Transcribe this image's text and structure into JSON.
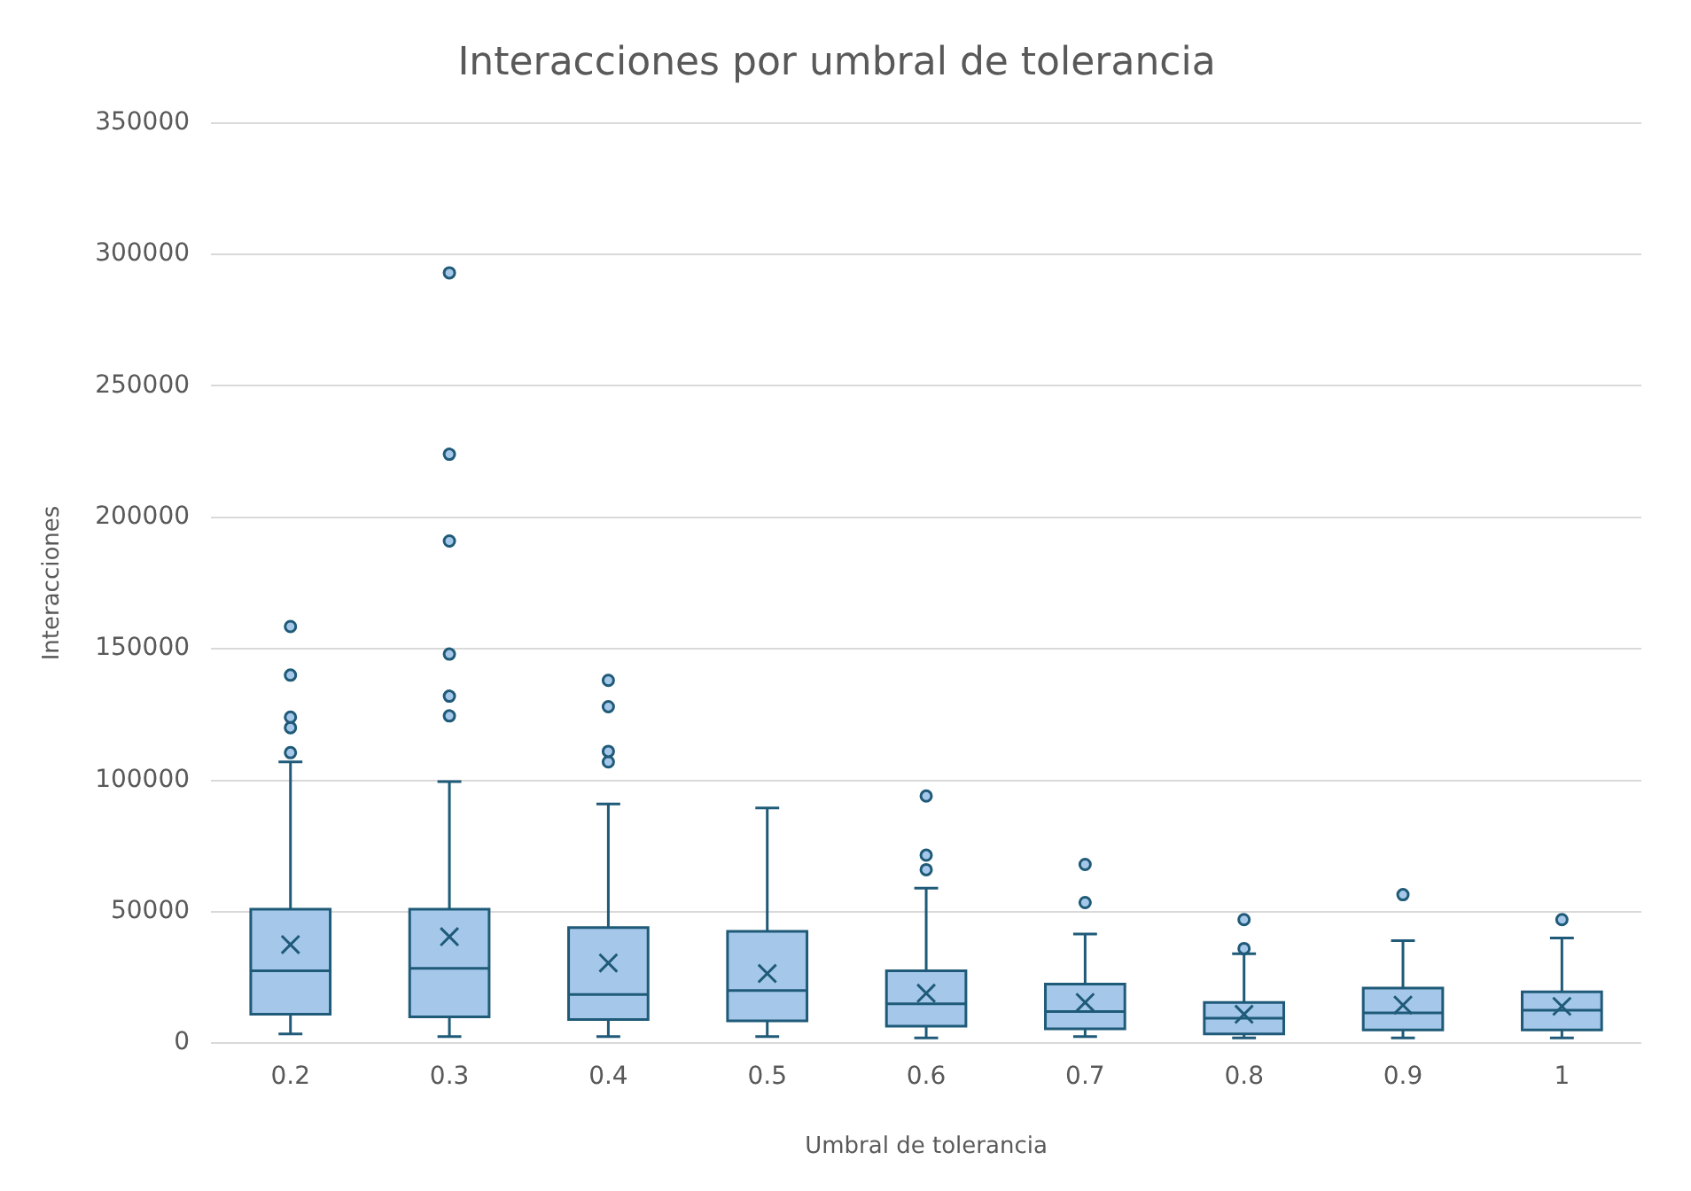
{
  "chart_data": {
    "type": "box",
    "title": "Interacciones por umbral de tolerancia",
    "xlabel": "Umbral de tolerancia",
    "ylabel": "Interacciones",
    "categories": [
      "0.2",
      "0.3",
      "0.4",
      "0.5",
      "0.6",
      "0.7",
      "0.8",
      "0.9",
      "1"
    ],
    "ylim": [
      0,
      350000
    ],
    "yticks": [
      0,
      50000,
      100000,
      150000,
      200000,
      250000,
      300000,
      350000
    ],
    "grid": "y",
    "legend": false,
    "marker": "circle",
    "series": [
      {
        "color": "#a5c8ea",
        "boxes": [
          {
            "low": 3500,
            "q1": 11000,
            "median": 27500,
            "q3": 51000,
            "high": 107000,
            "mean": 37500,
            "outliers": [
              110500,
              120000,
              124000,
              140000,
              158500
            ]
          },
          {
            "low": 2500,
            "q1": 10000,
            "median": 28500,
            "q3": 51000,
            "high": 99500,
            "mean": 40500,
            "outliers": [
              124500,
              132000,
              148000,
              191000,
              224000,
              293000
            ]
          },
          {
            "low": 2500,
            "q1": 9000,
            "median": 18500,
            "q3": 44000,
            "high": 91000,
            "mean": 30500,
            "outliers": [
              107000,
              111000,
              128000,
              138000
            ]
          },
          {
            "low": 2500,
            "q1": 8500,
            "median": 20000,
            "q3": 42500,
            "high": 89500,
            "mean": 26500
          },
          {
            "low": 2000,
            "q1": 6500,
            "median": 15000,
            "q3": 27500,
            "high": 59000,
            "mean": 19000,
            "outliers": [
              66000,
              71500,
              94000
            ]
          },
          {
            "low": 2500,
            "q1": 5500,
            "median": 12000,
            "q3": 22500,
            "high": 41500,
            "mean": 15500,
            "outliers": [
              53500,
              68000
            ]
          },
          {
            "low": 2000,
            "q1": 3500,
            "median": 9500,
            "q3": 15500,
            "high": 34000,
            "mean": 11000,
            "outliers": [
              36000,
              47000
            ]
          },
          {
            "low": 2000,
            "q1": 5000,
            "median": 11500,
            "q3": 21000,
            "high": 39000,
            "mean": 14500,
            "outliers": [
              56500
            ]
          },
          {
            "low": 2000,
            "q1": 5000,
            "median": 12500,
            "q3": 19500,
            "high": 40000,
            "mean": 14000,
            "outliers": [
              47000
            ]
          }
        ]
      }
    ]
  }
}
